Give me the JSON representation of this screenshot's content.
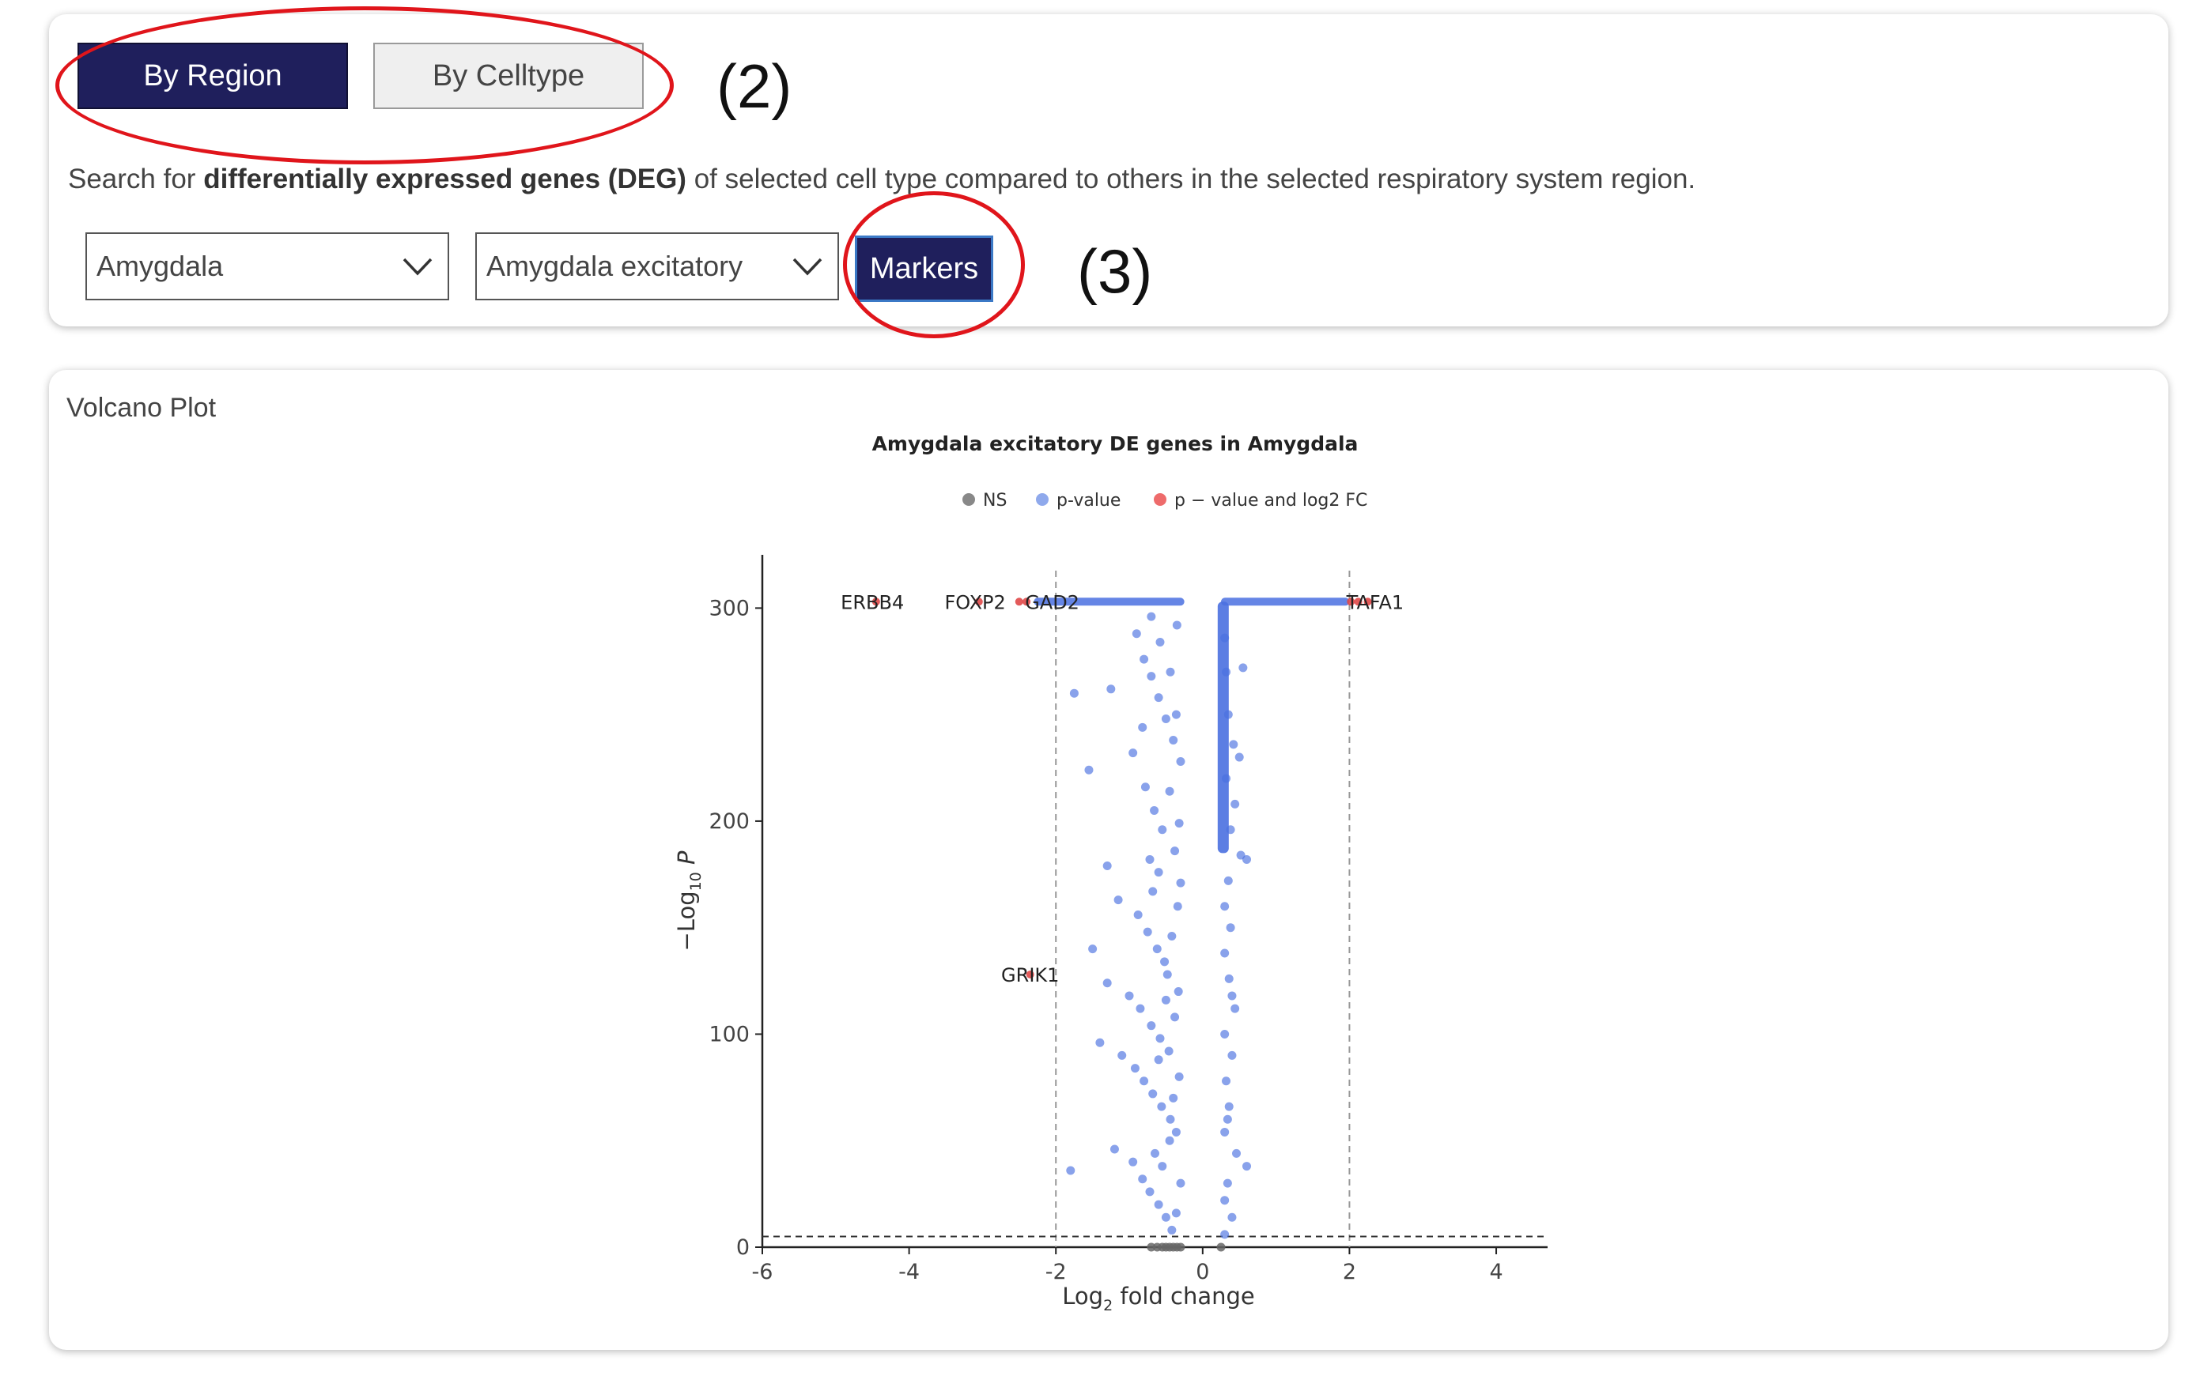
{
  "tabs": {
    "by_region": "By Region",
    "by_celltype": "By Celltype"
  },
  "description": {
    "prefix": "Search for ",
    "bold": "differentially expressed genes (DEG)",
    "suffix": " of selected cell type compared to others in the selected respiratory system region."
  },
  "filters": {
    "region": "Amygdala",
    "celltype": "Amygdala excitatory",
    "markers_label": "Markers"
  },
  "annotations": {
    "label_2": "(2)",
    "label_3": "(3)"
  },
  "annotation_color": "#e0151b",
  "panel": {
    "title": "Volcano Plot"
  },
  "chart_data": {
    "type": "scatter",
    "title": "Amygdala excitatory DE genes in Amygdala",
    "xlabel": "Log2 fold change",
    "ylabel": "-Log10 P",
    "xlim": [
      -6.0,
      4.7
    ],
    "ylim": [
      0,
      325
    ],
    "xticks": [
      -6,
      -4,
      -2,
      0,
      2,
      4
    ],
    "yticks": [
      0,
      100,
      200,
      300
    ],
    "vlines": [
      -2,
      2
    ],
    "hline": 5,
    "legend": [
      {
        "name": "NS",
        "color": "#888888"
      },
      {
        "name": "p-value",
        "color": "#8fa9ec"
      },
      {
        "name": "p − value and log2 FC",
        "color": "#ee6b6b"
      }
    ],
    "series_colors": {
      "ns": "#666666",
      "pval": "#4a70e0",
      "both": "#e04848"
    },
    "labeled_genes": [
      {
        "gene": "ERBB4",
        "x": -4.5,
        "y": 303
      },
      {
        "gene": "FOXP2",
        "x": -3.1,
        "y": 303
      },
      {
        "gene": "GAD2",
        "x": -2.4,
        "y": 303
      },
      {
        "gene": "TAFA1",
        "x": 2.1,
        "y": 303
      },
      {
        "gene": "GRIK1",
        "x": -2.3,
        "y": 128
      }
    ],
    "red_points": [
      [
        -4.45,
        303
      ],
      [
        -3.05,
        303
      ],
      [
        -2.5,
        303
      ],
      [
        -2.4,
        303
      ],
      [
        2.02,
        303
      ],
      [
        2.12,
        303
      ],
      [
        2.25,
        303
      ],
      [
        -2.35,
        128
      ]
    ],
    "top_band": {
      "left": [
        -2.3,
        -0.25
      ],
      "right": [
        0.25,
        2.0
      ],
      "y": 303
    },
    "right_column": {
      "x": 0.28,
      "y_from": 185,
      "y_to": 303
    },
    "ns_points": [
      [
        -0.7,
        0
      ],
      [
        -0.62,
        0
      ],
      [
        -0.55,
        0
      ],
      [
        -0.5,
        0
      ],
      [
        -0.45,
        0
      ],
      [
        -0.4,
        0
      ],
      [
        -0.35,
        0
      ],
      [
        -0.3,
        0
      ],
      [
        0.25,
        0
      ]
    ],
    "pval_points": [
      [
        -1.75,
        260
      ],
      [
        -1.25,
        262
      ],
      [
        -0.9,
        288
      ],
      [
        -0.8,
        276
      ],
      [
        -0.7,
        268
      ],
      [
        -0.6,
        258
      ],
      [
        -0.5,
        248
      ],
      [
        -0.4,
        238
      ],
      [
        -0.35,
        292
      ],
      [
        -0.3,
        228
      ],
      [
        -1.55,
        224
      ],
      [
        -0.95,
        232
      ],
      [
        -0.78,
        216
      ],
      [
        -0.66,
        205
      ],
      [
        -0.55,
        196
      ],
      [
        -0.45,
        214
      ],
      [
        -0.38,
        186
      ],
      [
        -0.32,
        199
      ],
      [
        -0.72,
        182
      ],
      [
        -0.6,
        176
      ],
      [
        -1.3,
        179
      ],
      [
        -1.15,
        163
      ],
      [
        -0.88,
        156
      ],
      [
        -0.75,
        148
      ],
      [
        -0.62,
        140
      ],
      [
        -0.52,
        134
      ],
      [
        -0.42,
        146
      ],
      [
        -0.34,
        160
      ],
      [
        -0.3,
        171
      ],
      [
        -0.68,
        167
      ],
      [
        -1.5,
        140
      ],
      [
        -1.3,
        124
      ],
      [
        -1.0,
        118
      ],
      [
        -0.85,
        112
      ],
      [
        -0.7,
        104
      ],
      [
        -0.58,
        98
      ],
      [
        -0.46,
        92
      ],
      [
        -0.38,
        108
      ],
      [
        -0.33,
        120
      ],
      [
        -0.5,
        116
      ],
      [
        -1.4,
        96
      ],
      [
        -1.1,
        90
      ],
      [
        -0.92,
        84
      ],
      [
        -0.8,
        78
      ],
      [
        -0.68,
        72
      ],
      [
        -0.56,
        66
      ],
      [
        -0.44,
        60
      ],
      [
        -0.36,
        54
      ],
      [
        -0.32,
        80
      ],
      [
        -0.6,
        88
      ],
      [
        -1.8,
        36
      ],
      [
        -1.2,
        46
      ],
      [
        -0.95,
        40
      ],
      [
        -0.82,
        32
      ],
      [
        -0.72,
        26
      ],
      [
        -0.6,
        20
      ],
      [
        -0.5,
        14
      ],
      [
        -0.42,
        8
      ],
      [
        -0.36,
        16
      ],
      [
        -0.3,
        30
      ],
      [
        -0.65,
        44
      ],
      [
        -0.55,
        38
      ],
      [
        -0.45,
        50
      ],
      [
        -0.4,
        70
      ],
      [
        -0.48,
        128
      ],
      [
        -0.36,
        250
      ],
      [
        -0.44,
        270
      ],
      [
        -0.58,
        284
      ],
      [
        -0.82,
        244
      ],
      [
        -0.7,
        296
      ],
      [
        0.3,
        286
      ],
      [
        0.32,
        270
      ],
      [
        0.35,
        250
      ],
      [
        0.42,
        236
      ],
      [
        0.5,
        230
      ],
      [
        0.55,
        272
      ],
      [
        0.6,
        182
      ],
      [
        0.52,
        184
      ],
      [
        0.35,
        172
      ],
      [
        0.3,
        160
      ],
      [
        0.38,
        150
      ],
      [
        0.3,
        138
      ],
      [
        0.36,
        126
      ],
      [
        0.44,
        112
      ],
      [
        0.3,
        100
      ],
      [
        0.4,
        90
      ],
      [
        0.32,
        78
      ],
      [
        0.36,
        66
      ],
      [
        0.3,
        54
      ],
      [
        0.46,
        44
      ],
      [
        0.6,
        38
      ],
      [
        0.34,
        30
      ],
      [
        0.3,
        22
      ],
      [
        0.4,
        14
      ],
      [
        0.3,
        6
      ],
      [
        0.38,
        196
      ],
      [
        0.44,
        208
      ],
      [
        0.32,
        220
      ],
      [
        0.4,
        118
      ],
      [
        0.34,
        60
      ]
    ]
  }
}
